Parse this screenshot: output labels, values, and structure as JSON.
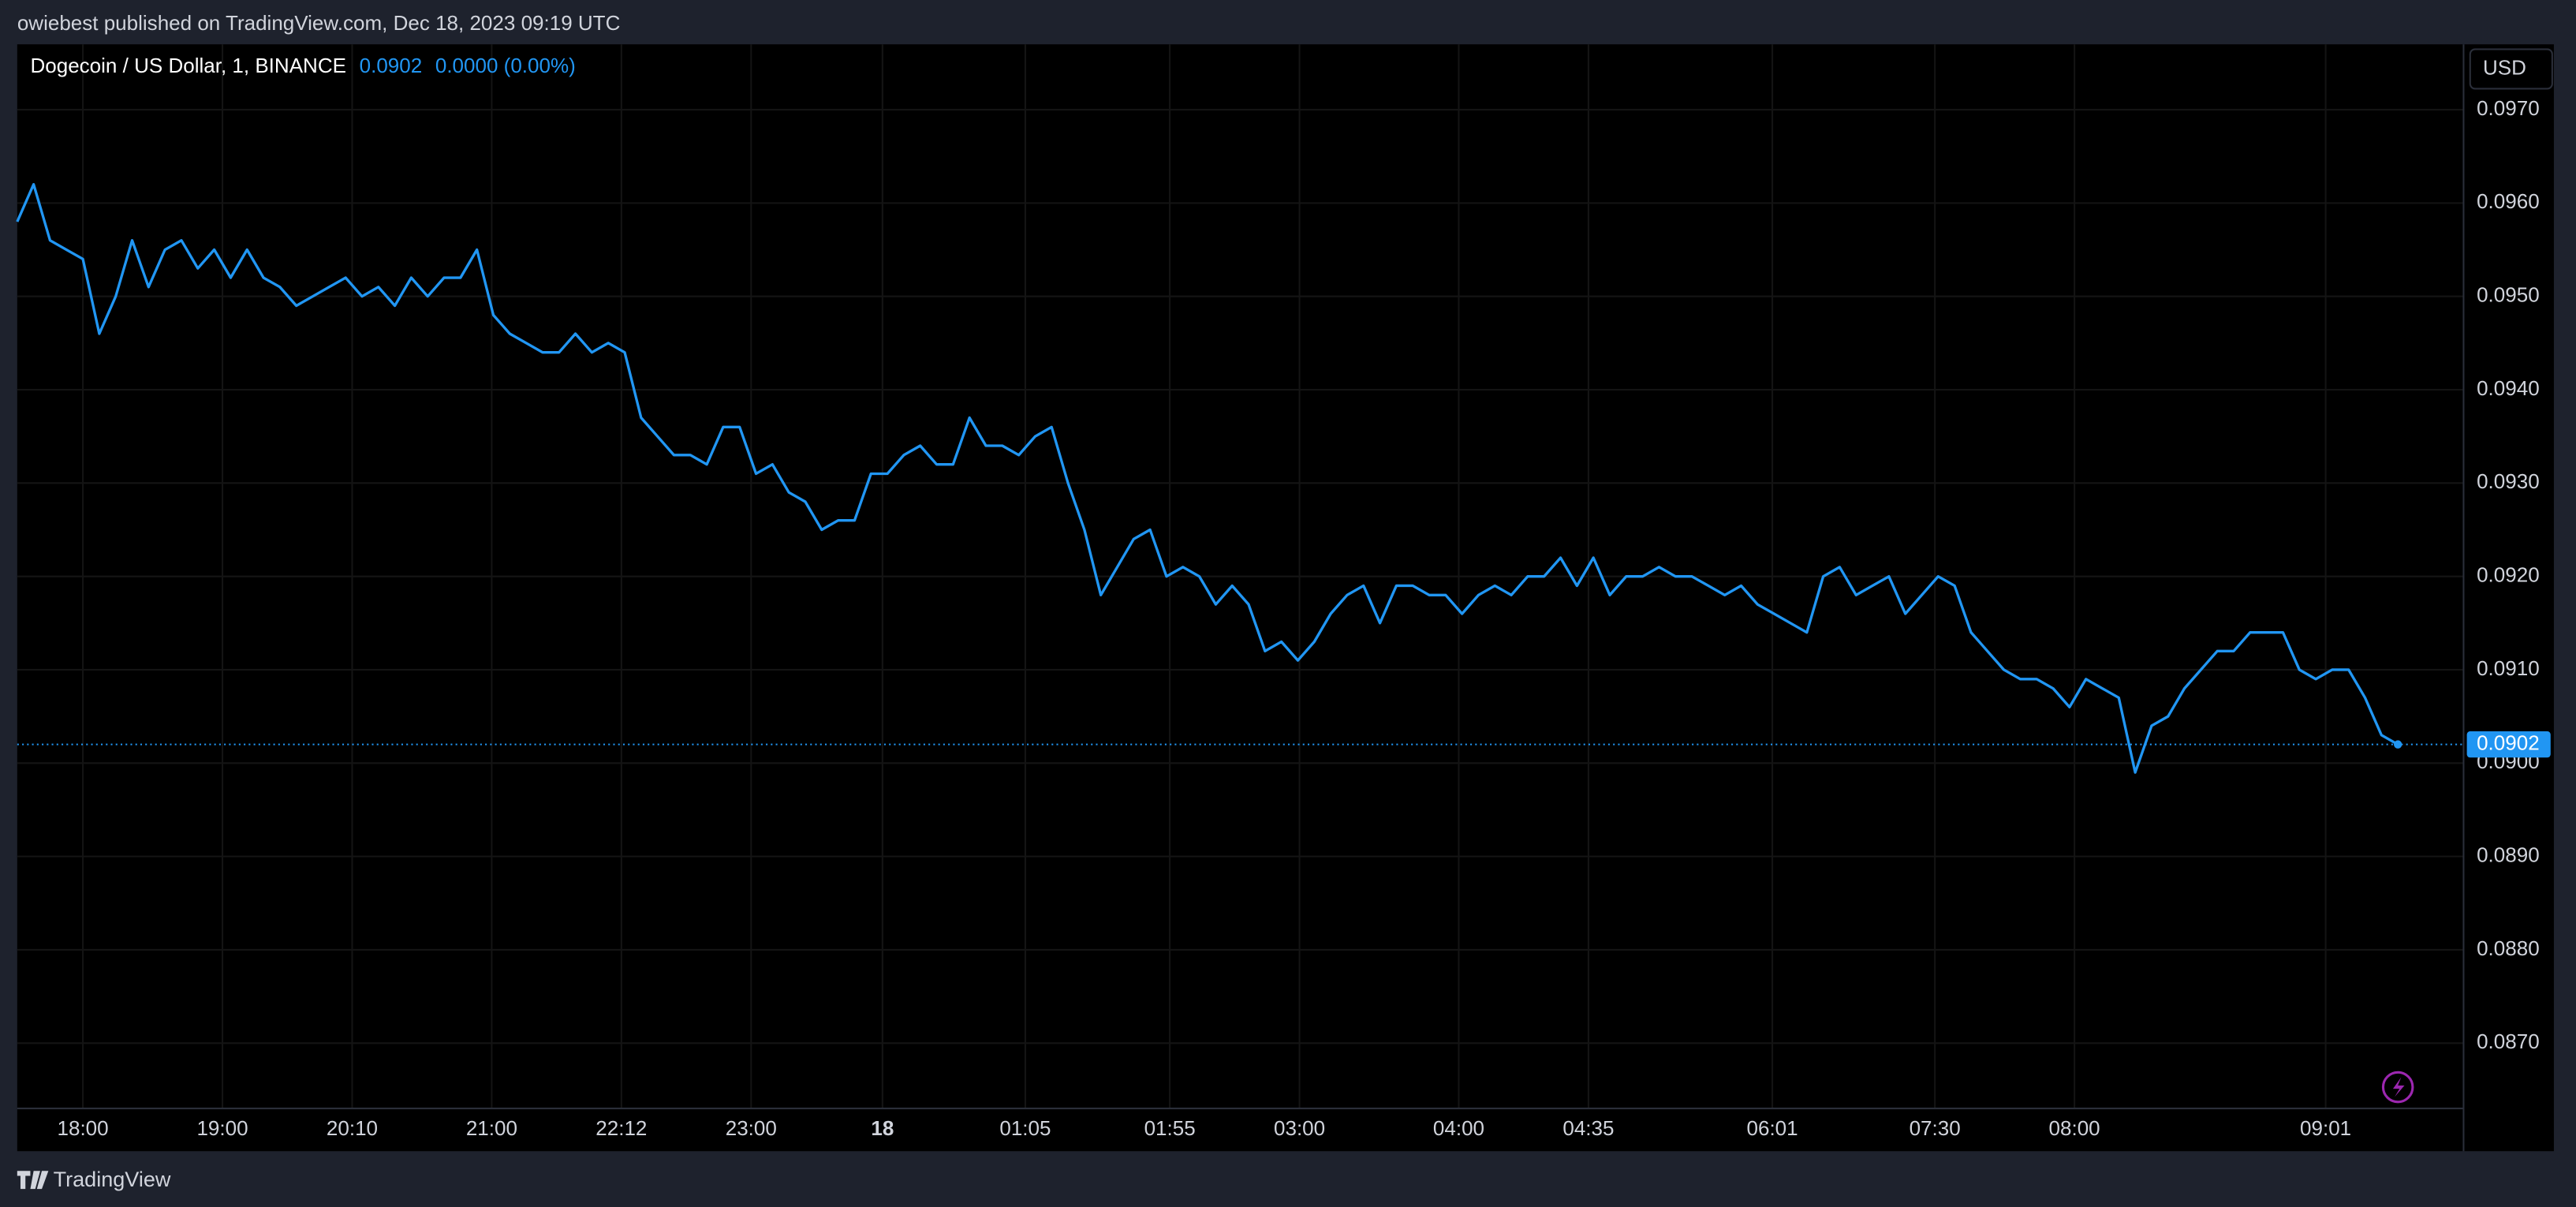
{
  "header": {
    "published": "owiebest published on TradingView.com, Dec 18, 2023 09:19 UTC"
  },
  "footer": {
    "brand": "TradingView"
  },
  "chart_data": {
    "type": "line",
    "title": "Dogecoin / US Dollar, 1, BINANCE",
    "last_price": 0.0902,
    "change": "0.0000 (0.00%)",
    "currency": "USD",
    "grid": true,
    "series": [
      {
        "color": "#2196f3",
        "values": [
          0.0958,
          0.0962,
          0.0956,
          0.0955,
          0.0954,
          0.0946,
          0.095,
          0.0956,
          0.0951,
          0.0955,
          0.0956,
          0.0953,
          0.0955,
          0.0952,
          0.0955,
          0.0952,
          0.0951,
          0.0949,
          0.095,
          0.0951,
          0.0952,
          0.095,
          0.0951,
          0.0949,
          0.0952,
          0.095,
          0.0952,
          0.0952,
          0.0955,
          0.0948,
          0.0946,
          0.0945,
          0.0944,
          0.0944,
          0.0946,
          0.0944,
          0.0945,
          0.0944,
          0.0937,
          0.0935,
          0.0933,
          0.0933,
          0.0932,
          0.0936,
          0.0936,
          0.0931,
          0.0932,
          0.0929,
          0.0928,
          0.0925,
          0.0926,
          0.0926,
          0.0931,
          0.0931,
          0.0933,
          0.0934,
          0.0932,
          0.0932,
          0.0937,
          0.0934,
          0.0934,
          0.0933,
          0.0935,
          0.0936,
          0.093,
          0.0925,
          0.0918,
          0.0921,
          0.0924,
          0.0925,
          0.092,
          0.0921,
          0.092,
          0.0917,
          0.0919,
          0.0917,
          0.0912,
          0.0913,
          0.0911,
          0.0913,
          0.0916,
          0.0918,
          0.0919,
          0.0915,
          0.0919,
          0.0919,
          0.0918,
          0.0918,
          0.0916,
          0.0918,
          0.0919,
          0.0918,
          0.092,
          0.092,
          0.0922,
          0.0919,
          0.0922,
          0.0918,
          0.092,
          0.092,
          0.0921,
          0.092,
          0.092,
          0.0919,
          0.0918,
          0.0919,
          0.0917,
          0.0916,
          0.0915,
          0.0914,
          0.092,
          0.0921,
          0.0918,
          0.0919,
          0.092,
          0.0916,
          0.0918,
          0.092,
          0.0919,
          0.0914,
          0.0912,
          0.091,
          0.0909,
          0.0909,
          0.0908,
          0.0906,
          0.0909,
          0.0908,
          0.0907,
          0.0899,
          0.0904,
          0.0905,
          0.0908,
          0.091,
          0.0912,
          0.0912,
          0.0914,
          0.0914,
          0.0914,
          0.091,
          0.0909,
          0.091,
          0.091,
          0.0907,
          0.0903,
          0.0902
        ]
      }
    ],
    "xlim": [
      0,
      149
    ],
    "xticks": [
      {
        "value": 4,
        "label": "18:00"
      },
      {
        "value": 12.5,
        "label": "19:00"
      },
      {
        "value": 20.4,
        "label": "20:10"
      },
      {
        "value": 28.9,
        "label": "21:00"
      },
      {
        "value": 36.8,
        "label": "22:12"
      },
      {
        "value": 44.7,
        "label": "23:00"
      },
      {
        "value": 52.7,
        "label": "18"
      },
      {
        "value": 61.4,
        "label": "01:05"
      },
      {
        "value": 70.2,
        "label": "01:55"
      },
      {
        "value": 78.1,
        "label": "03:00"
      },
      {
        "value": 87.8,
        "label": "04:00"
      },
      {
        "value": 95.7,
        "label": "04:35"
      },
      {
        "value": 106.9,
        "label": "06:01"
      },
      {
        "value": 116.8,
        "label": "07:30"
      },
      {
        "value": 125.3,
        "label": "08:00"
      },
      {
        "value": 140.6,
        "label": "09:01"
      }
    ],
    "ylim": [
      0.0863,
      0.0977
    ],
    "yticks": [
      {
        "value": 0.087,
        "label": "0.0870"
      },
      {
        "value": 0.088,
        "label": "0.0880"
      },
      {
        "value": 0.089,
        "label": "0.0890"
      },
      {
        "value": 0.09,
        "label": "0.0900"
      },
      {
        "value": 0.091,
        "label": "0.0910"
      },
      {
        "value": 0.092,
        "label": "0.0920"
      },
      {
        "value": 0.093,
        "label": "0.0930"
      },
      {
        "value": 0.094,
        "label": "0.0940"
      },
      {
        "value": 0.095,
        "label": "0.0950"
      },
      {
        "value": 0.096,
        "label": "0.0960"
      },
      {
        "value": 0.097,
        "label": "0.0970"
      }
    ]
  }
}
